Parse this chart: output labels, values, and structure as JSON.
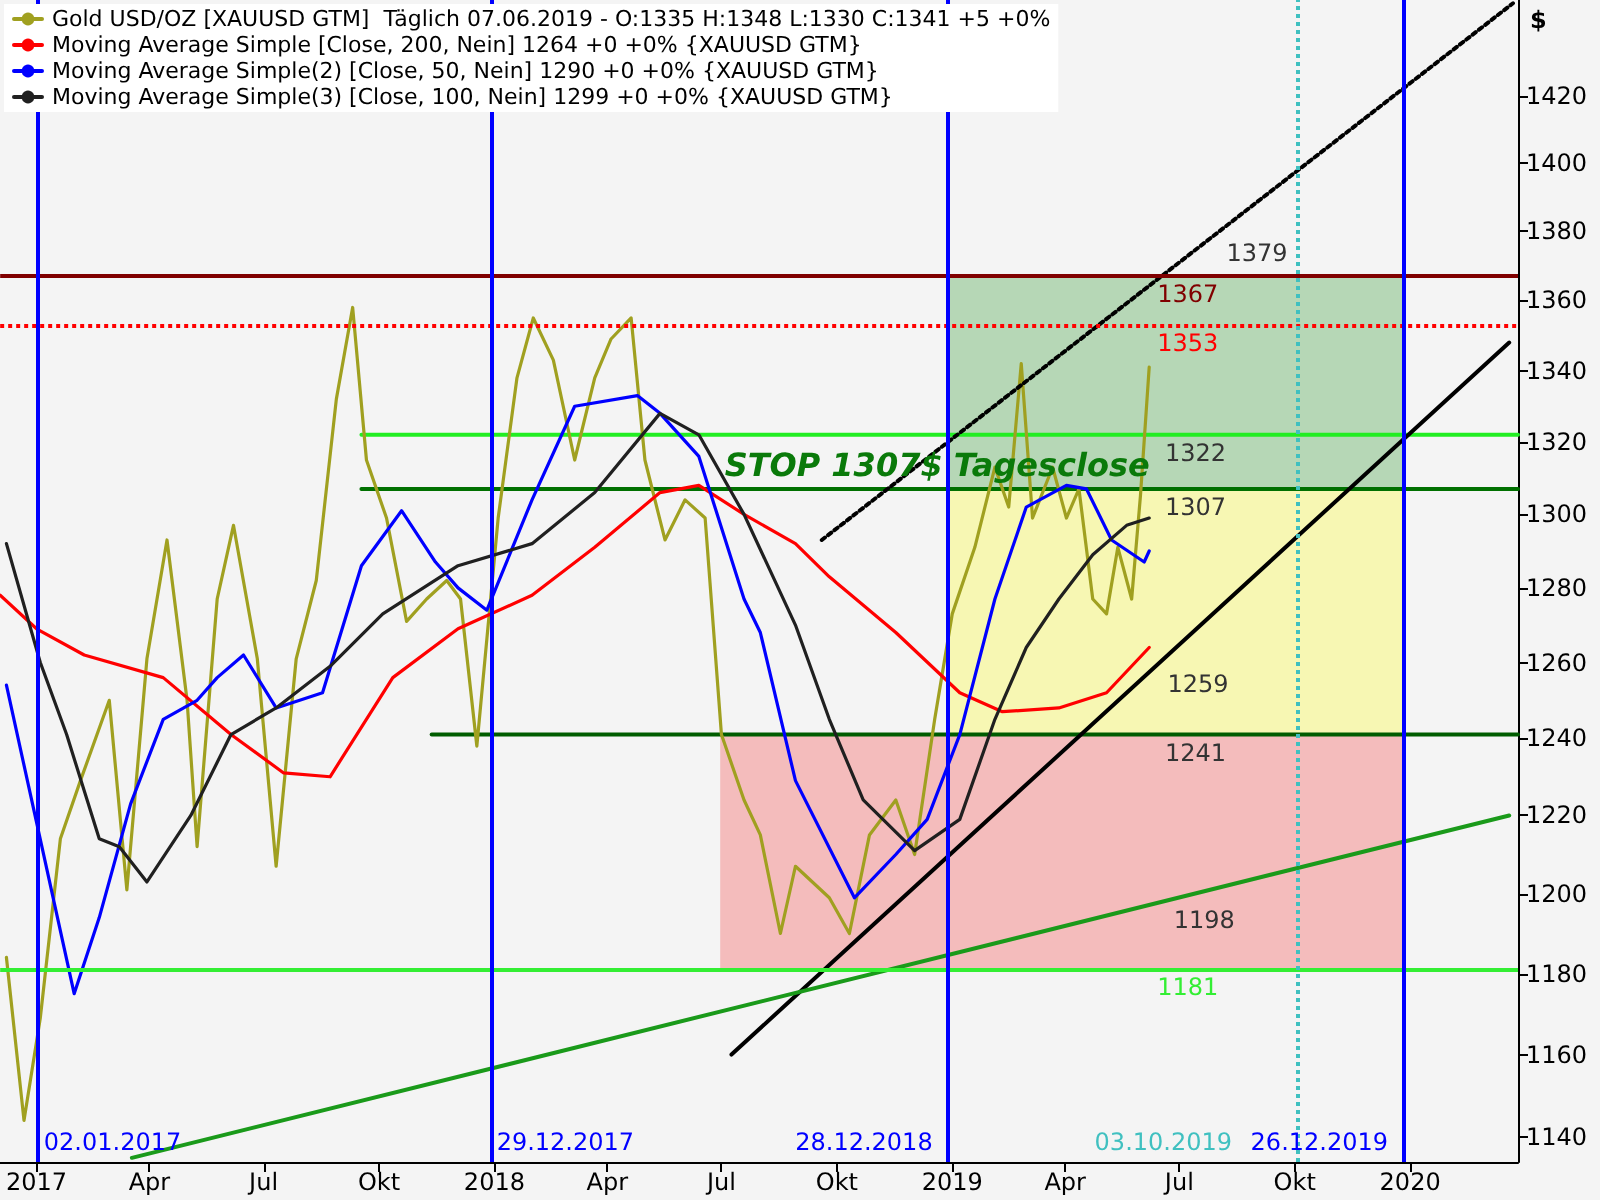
{
  "chart_data": {
    "type": "line",
    "ylabel": "$",
    "log": true,
    "grid": false,
    "legend": "top left",
    "marker": "none",
    "line_style": "solid",
    "xlim": [
      "2016-12-03",
      "2020-03-27"
    ],
    "ylim": [
      1134,
      1449
    ],
    "yticks": [
      1140,
      1160,
      1180,
      1200,
      1220,
      1240,
      1260,
      1280,
      1300,
      1320,
      1340,
      1360,
      1380,
      1400,
      1420
    ],
    "xticks": [
      {
        "value": "2017-01-01",
        "label": "2017"
      },
      {
        "value": "2017-04-01",
        "label": "Apr"
      },
      {
        "value": "2017-07-01",
        "label": "Jul"
      },
      {
        "value": "2017-10-01",
        "label": "Okt"
      },
      {
        "value": "2018-01-01",
        "label": "2018"
      },
      {
        "value": "2018-04-01",
        "label": "Apr"
      },
      {
        "value": "2018-07-01",
        "label": "Jul"
      },
      {
        "value": "2018-10-01",
        "label": "Okt"
      },
      {
        "value": "2019-01-01",
        "label": "2019"
      },
      {
        "value": "2019-04-01",
        "label": "Apr"
      },
      {
        "value": "2019-07-01",
        "label": "Jul"
      },
      {
        "value": "2019-10-01",
        "label": "Okt"
      },
      {
        "value": "2020-01-01",
        "label": "2020"
      }
    ],
    "series": [
      {
        "type": "area",
        "color": "#b6d7b6",
        "x": [
          "2018-12-28",
          "2019-12-26"
        ],
        "values": [
          null,
          null
        ],
        "lower": [
          1307,
          1307
        ],
        "upper": [
          1367,
          1367
        ]
      },
      {
        "type": "area",
        "color": "#f7f7b3",
        "x": [
          "2018-12-28",
          "2019-12-26"
        ],
        "values": [
          null,
          null
        ],
        "lower": [
          1241,
          1241
        ],
        "upper": [
          1307,
          1307
        ]
      },
      {
        "type": "area",
        "color": "#f4bcbc",
        "x": [
          "2018-06-30",
          "2019-12-26"
        ],
        "values": [
          null,
          null
        ],
        "lower": [
          1181,
          1181
        ],
        "upper": [
          1241,
          1241
        ]
      },
      {
        "color": "#22ee22",
        "x": [
          "2017-09-17",
          "2020-03-27"
        ],
        "values": [
          1322,
          1322
        ]
      },
      {
        "color": "#007000",
        "x": [
          "2017-09-17",
          "2020-03-27"
        ],
        "values": [
          1307,
          1307
        ]
      },
      {
        "color": "#005c00",
        "x": [
          "2017-11-12",
          "2020-03-27"
        ],
        "values": [
          1241,
          1241
        ]
      },
      {
        "name": "Gold USD/OZ [XAUUSD GTM]  Täglich 07.06.2019 - O:1335 H:1348 L:1330 C:1341 +5 +0%",
        "color": "#a0a020",
        "x": [
          "2016-12-08",
          "2016-12-22",
          "2017-01-04",
          "2017-01-20",
          "2017-02-05",
          "2017-02-28",
          "2017-03-14",
          "2017-03-30",
          "2017-04-15",
          "2017-05-01",
          "2017-05-09",
          "2017-05-25",
          "2017-06-07",
          "2017-06-26",
          "2017-07-11",
          "2017-07-27",
          "2017-08-12",
          "2017-08-28",
          "2017-09-10",
          "2017-09-21",
          "2017-10-07",
          "2017-10-23",
          "2017-11-08",
          "2017-11-24",
          "2017-12-05",
          "2017-12-18",
          "2018-01-04",
          "2018-01-19",
          "2018-02-01",
          "2018-02-17",
          "2018-03-06",
          "2018-03-22",
          "2018-04-04",
          "2018-04-20",
          "2018-05-01",
          "2018-05-17",
          "2018-06-02",
          "2018-06-18",
          "2018-07-01",
          "2018-07-19",
          "2018-08-01",
          "2018-08-17",
          "2018-08-29",
          "2018-09-25",
          "2018-10-11",
          "2018-10-27",
          "2018-11-17",
          "2018-12-02",
          "2018-12-18",
          "2019-01-01",
          "2019-01-19",
          "2019-02-04",
          "2019-02-15",
          "2019-02-25",
          "2019-03-06",
          "2019-03-22",
          "2019-04-02",
          "2019-04-12",
          "2019-04-23",
          "2019-05-04",
          "2019-05-13",
          "2019-05-24",
          "2019-05-31",
          "2019-06-07"
        ],
        "values": [
          1184,
          1144,
          1169,
          1214,
          1229,
          1250,
          1201,
          1261,
          1293,
          1250,
          1212,
          1277,
          1297,
          1261,
          1207,
          1261,
          1282,
          1332,
          1358,
          1315,
          1299,
          1271,
          1277,
          1282,
          1277,
          1238,
          1299,
          1338,
          1355,
          1343,
          1315,
          1338,
          1349,
          1355,
          1315,
          1293,
          1304,
          1299,
          1241,
          1224,
          1215,
          1190,
          1207,
          1199,
          1190,
          1215,
          1224,
          1210,
          1245,
          1273,
          1291,
          1313,
          1302,
          1342,
          1299,
          1313,
          1299,
          1307,
          1277,
          1273,
          1291,
          1277,
          1305,
          1341
        ]
      },
      {
        "name": "Moving Average Simple [Close, 200, Nein] 1264 +0 +0% {XAUUSD GTM}",
        "color": "#ff0000",
        "x": [
          "2016-12-03",
          "2017-01-01",
          "2017-02-08",
          "2017-04-12",
          "2017-06-05",
          "2017-07-17",
          "2017-08-23",
          "2017-10-12",
          "2017-12-03",
          "2018-01-31",
          "2018-03-22",
          "2018-05-13",
          "2018-06-13",
          "2018-07-19",
          "2018-08-29",
          "2018-09-25",
          "2018-11-17",
          "2019-01-07",
          "2019-02-10",
          "2019-03-27",
          "2019-05-04",
          "2019-06-07"
        ],
        "values": [
          1278,
          1269,
          1262,
          1256,
          1241,
          1231,
          1230,
          1256,
          1269,
          1278,
          1291,
          1306,
          1308,
          1300,
          1292,
          1283,
          1268,
          1252,
          1247,
          1248,
          1252,
          1264
        ]
      },
      {
        "name": "Moving Average Simple(2) [Close, 50, Nein] 1290 +0 +0% {XAUUSD GTM}",
        "color": "#0000ff",
        "x": [
          "2016-12-08",
          "2017-01-31",
          "2017-02-20",
          "2017-03-17",
          "2017-04-12",
          "2017-05-09",
          "2017-05-25",
          "2017-06-15",
          "2017-07-11",
          "2017-08-17",
          "2017-09-17",
          "2017-10-19",
          "2017-11-15",
          "2017-12-03",
          "2017-12-26",
          "2018-01-31",
          "2018-03-06",
          "2018-04-25",
          "2018-05-13",
          "2018-06-13",
          "2018-07-19",
          "2018-08-01",
          "2018-08-29",
          "2018-10-15",
          "2018-11-17",
          "2018-12-12",
          "2019-01-07",
          "2019-02-04",
          "2019-03-01",
          "2019-04-02",
          "2019-04-18",
          "2019-05-08",
          "2019-06-03",
          "2019-06-07"
        ],
        "values": [
          1254,
          1175,
          1194,
          1223,
          1245,
          1250,
          1256,
          1262,
          1248,
          1252,
          1286,
          1301,
          1287,
          1280,
          1274,
          1304,
          1330,
          1333,
          1328,
          1316,
          1277,
          1268,
          1229,
          1199,
          1210,
          1219,
          1241,
          1277,
          1302,
          1308,
          1307,
          1293,
          1287,
          1290
        ]
      },
      {
        "name": "Moving Average Simple(3) [Close, 100, Nein] 1299 +0 +0% {XAUUSD GTM}",
        "color": "#202020",
        "x": [
          "2016-12-08",
          "2017-01-04",
          "2017-01-25",
          "2017-02-20",
          "2017-03-08",
          "2017-03-30",
          "2017-05-04",
          "2017-06-05",
          "2017-07-11",
          "2017-08-23",
          "2017-10-04",
          "2017-12-03",
          "2018-01-31",
          "2018-03-22",
          "2018-05-13",
          "2018-06-13",
          "2018-07-19",
          "2018-08-29",
          "2018-09-25",
          "2018-10-22",
          "2018-12-02",
          "2019-01-07",
          "2019-02-04",
          "2019-03-01",
          "2019-03-27",
          "2019-04-23",
          "2019-05-20",
          "2019-06-07"
        ],
        "values": [
          1292,
          1260,
          1241,
          1214,
          1212,
          1203,
          1220,
          1241,
          1248,
          1259,
          1273,
          1286,
          1292,
          1306,
          1328,
          1322,
          1300,
          1270,
          1245,
          1224,
          1211,
          1219,
          1245,
          1264,
          1277,
          1289,
          1297,
          1299
        ]
      },
      {
        "color": "#000000",
        "x": [
          "2018-07-09",
          "2020-03-20"
        ],
        "values": [
          1160,
          1348
        ]
      },
      {
        "color": "#000000",
        "line_style": "dotted",
        "x": [
          "2018-09-19",
          "2020-03-23"
        ],
        "values": [
          1293,
          1448
        ]
      },
      {
        "color": "#1a9a1a",
        "x": [
          "2017-03-18",
          "2020-03-20"
        ],
        "values": [
          1135,
          1220
        ]
      }
    ],
    "ref_lines": [
      {
        "axis": "y",
        "value": 1367,
        "label": "1367",
        "color": "#800000"
      },
      {
        "axis": "y",
        "value": 1353,
        "label": "1353",
        "color": "#ff0000",
        "line_style": "dotted"
      },
      {
        "axis": "y",
        "value": 1181,
        "label": "1181",
        "color": "#33ee33"
      },
      {
        "axis": "x",
        "value": "2017-01-02",
        "label": "02.01.2017",
        "color": "#0000ff"
      },
      {
        "axis": "x",
        "value": "2017-12-29",
        "label": "29.12.2017",
        "color": "#0000ff"
      },
      {
        "axis": "x",
        "value": "2018-12-28",
        "label": "28.12.2018",
        "color": "#0000ff"
      },
      {
        "axis": "x",
        "value": "2019-10-03",
        "label": "03.10.2019",
        "color": "#40c0c0",
        "line_style": "dotted"
      },
      {
        "axis": "x",
        "value": "2019-12-26",
        "label": "26.12.2019",
        "color": "#0000ff"
      }
    ],
    "annotations": [
      {
        "text": "STOP 1307$ Tagesclose",
        "x": "2018-12-20",
        "y": 1307
      },
      {
        "text": "1379",
        "x": "2019-07-29",
        "y": 1379
      },
      {
        "text": "1322",
        "x": "2019-06-10",
        "y": 1322
      },
      {
        "text": "1307",
        "x": "2019-06-10",
        "y": 1307
      },
      {
        "text": "1259",
        "x": "2019-06-12",
        "y": 1259
      },
      {
        "text": "1241",
        "x": "2019-06-10",
        "y": 1241
      },
      {
        "text": "1198",
        "x": "2019-06-17",
        "y": 1198
      }
    ]
  }
}
